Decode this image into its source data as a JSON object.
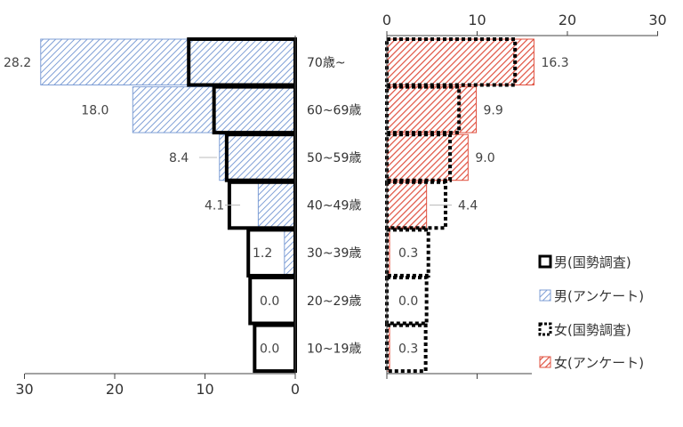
{
  "chart_data": {
    "type": "bar",
    "orientation": "horizontal",
    "layout": "population-pyramid",
    "categories": [
      "70歳~",
      "60~69歳",
      "50~59歳",
      "40~49歳",
      "30~39歳",
      "20~29歳",
      "10~19歳"
    ],
    "series": [
      {
        "name": "男(国勢調査)",
        "side": "left",
        "style": "outline-solid",
        "values": [
          11.8,
          9.0,
          7.6,
          7.3,
          5.2,
          5.0,
          4.5
        ]
      },
      {
        "name": "男(アンケート)",
        "side": "left",
        "style": "hatch-blue",
        "color": "#7f9fd6",
        "values": [
          28.2,
          18.0,
          8.4,
          4.1,
          1.2,
          0.0,
          0.0
        ]
      },
      {
        "name": "女(国勢調査)",
        "side": "right",
        "style": "outline-dotted",
        "values": [
          14.2,
          8.0,
          7.0,
          6.5,
          4.6,
          4.4,
          4.3
        ]
      },
      {
        "name": "女(アンケート)",
        "side": "right",
        "style": "hatch-red",
        "color": "#e0503f",
        "values": [
          16.3,
          9.9,
          9.0,
          4.4,
          0.3,
          0.0,
          0.3
        ]
      }
    ],
    "data_labels": {
      "male": [
        "28.2",
        "18.0",
        "8.4",
        "4.1",
        "1.2",
        "0.0",
        "0.0"
      ],
      "female": [
        "16.3",
        "9.9",
        "9.0",
        "4.4",
        "0.3",
        "0.0",
        "0.3"
      ]
    },
    "left_axis": {
      "ticks": [
        "30",
        "20",
        "10",
        "0"
      ],
      "range": [
        0,
        30
      ],
      "position": "bottom"
    },
    "right_axis": {
      "ticks": [
        "0",
        "10",
        "20",
        "30"
      ],
      "range": [
        0,
        30
      ],
      "position": "top"
    },
    "legend": {
      "placement": "right",
      "entries": [
        "男(国勢調査)",
        "男(アンケート)",
        "女(国勢調査)",
        "女(アンケート)"
      ]
    },
    "grid": false
  }
}
